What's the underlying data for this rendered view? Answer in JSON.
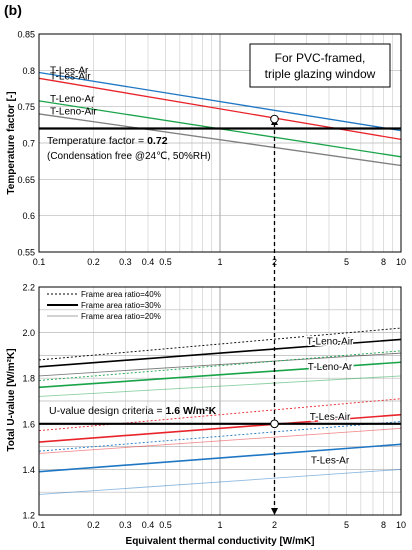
{
  "panel_label": "(b)",
  "xlabel": "Equivalent thermal conductivity [W/mK]",
  "top": {
    "ylabel": "Temperature factor [-]",
    "y_ticks": [
      "0.55",
      "0.6",
      "0.65",
      "0.7",
      "0.75",
      "0.8",
      "0.85"
    ],
    "x_ticks": [
      "0.1",
      "0.2",
      "0.3",
      "0.4",
      "0.5",
      "1",
      "2",
      "5",
      "8",
      "10"
    ],
    "box_line1": "For PVC-framed,",
    "box_line2": "triple glazing window",
    "criterion_line1_prefix": "Temperature factor = ",
    "criterion_line1_value": "0.72",
    "criterion_line2": "(Condensation free @24℃, 50%RH)"
  },
  "bottom": {
    "ylabel": "Total U-value [W/m²K]",
    "y_ticks": [
      "1.2",
      "1.4",
      "1.6",
      "1.8",
      "2.0",
      "2.2"
    ],
    "x_ticks": [
      "0.1",
      "0.2",
      "0.3",
      "0.4",
      "0.5",
      "1",
      "2",
      "5",
      "8",
      "10"
    ],
    "legend": [
      "Frame area ratio=40%",
      "Frame area ratio=30%",
      "Frame area ratio=20%"
    ],
    "criterion_prefix": "U-value design criteria = ",
    "criterion_value": "1.6 W/m²K"
  },
  "colors": {
    "T-Les-Ar": "#1f77c4",
    "T-Les-Air": "#e8242b",
    "T-Leno-Ar": "#1aa44a",
    "T-Leno-Air": "#7f7f7f",
    "criteria": "#000000"
  },
  "chart_data": [
    {
      "type": "line",
      "xscale": "log",
      "xlim": [
        0.1,
        10
      ],
      "ylim": [
        0.55,
        0.85
      ],
      "xlabel": "Equivalent thermal conductivity [W/mK]",
      "ylabel": "Temperature factor [-]",
      "grid": true,
      "threshold": 0.72,
      "marker": {
        "x": 2,
        "y": 0.733
      },
      "series": [
        {
          "name": "T-Les-Ar",
          "x": [
            0.1,
            10
          ],
          "y": [
            0.797,
            0.717
          ]
        },
        {
          "name": "T-Les-Air",
          "x": [
            0.1,
            10
          ],
          "y": [
            0.789,
            0.705
          ]
        },
        {
          "name": "T-Leno-Ar",
          "x": [
            0.1,
            10
          ],
          "y": [
            0.758,
            0.681
          ]
        },
        {
          "name": "T-Leno-Air",
          "x": [
            0.1,
            10
          ],
          "y": [
            0.74,
            0.669
          ]
        }
      ]
    },
    {
      "type": "line",
      "xscale": "log",
      "xlim": [
        0.1,
        10
      ],
      "ylim": [
        1.2,
        2.2
      ],
      "xlabel": "Equivalent thermal conductivity [W/mK]",
      "ylabel": "Total U-value [W/m²K]",
      "grid": true,
      "legend_position": "top-left",
      "threshold": 1.6,
      "marker": {
        "x": 2,
        "y": 1.6
      },
      "series": [
        {
          "name": "T-Leno-Air",
          "frame_ratio": "40%",
          "x": [
            0.1,
            10
          ],
          "y": [
            1.88,
            2.02
          ]
        },
        {
          "name": "T-Leno-Air",
          "frame_ratio": "30%",
          "x": [
            0.1,
            10
          ],
          "y": [
            1.85,
            1.97
          ]
        },
        {
          "name": "T-Leno-Air",
          "frame_ratio": "20%",
          "x": [
            0.1,
            10
          ],
          "y": [
            1.81,
            1.91
          ]
        },
        {
          "name": "T-Leno-Ar",
          "frame_ratio": "40%",
          "x": [
            0.1,
            10
          ],
          "y": [
            1.79,
            1.92
          ]
        },
        {
          "name": "T-Leno-Ar",
          "frame_ratio": "30%",
          "x": [
            0.1,
            10
          ],
          "y": [
            1.76,
            1.87
          ]
        },
        {
          "name": "T-Leno-Ar",
          "frame_ratio": "20%",
          "x": [
            0.1,
            10
          ],
          "y": [
            1.72,
            1.81
          ]
        },
        {
          "name": "T-Les-Air",
          "frame_ratio": "40%",
          "x": [
            0.1,
            10
          ],
          "y": [
            1.57,
            1.71
          ]
        },
        {
          "name": "T-Les-Air",
          "frame_ratio": "30%",
          "x": [
            0.1,
            10
          ],
          "y": [
            1.52,
            1.64
          ]
        },
        {
          "name": "T-Les-Air",
          "frame_ratio": "20%",
          "x": [
            0.1,
            10
          ],
          "y": [
            1.47,
            1.58
          ]
        },
        {
          "name": "T-Les-Ar",
          "frame_ratio": "40%",
          "x": [
            0.1,
            10
          ],
          "y": [
            1.48,
            1.61
          ]
        },
        {
          "name": "T-Les-Ar",
          "frame_ratio": "30%",
          "x": [
            0.1,
            10
          ],
          "y": [
            1.39,
            1.51
          ]
        },
        {
          "name": "T-Les-Ar",
          "frame_ratio": "20%",
          "x": [
            0.1,
            10
          ],
          "y": [
            1.29,
            1.4
          ]
        }
      ]
    }
  ]
}
